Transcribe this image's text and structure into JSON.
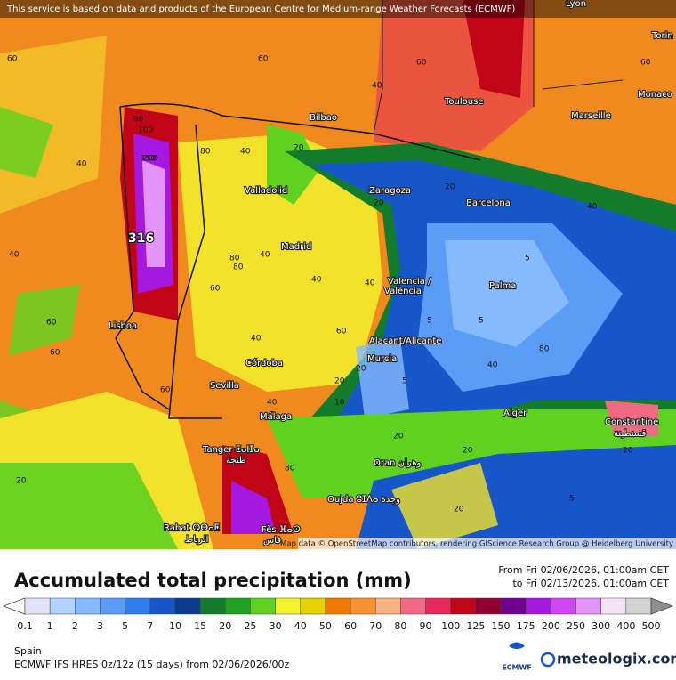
{
  "banner": "This service is based on data and products of the European Centre for Medium-range Weather Forecasts (ECMWF)",
  "attribution": "Map data © OpenStreetMap contributors, rendering GIScience Research Group @ Heidelberg University",
  "map": {
    "cities": [
      "Lyon",
      "Torin",
      "Monaco",
      "Marseille",
      "Toulouse",
      "Bilbao",
      "Valladolid",
      "Zaragoza",
      "Barcelona",
      "Madrid",
      "Valencia /",
      "València",
      "Palma",
      "Lisboa",
      "Alacant/Alicante",
      "Murcia",
      "Córdoba",
      "Sevilla",
      "Alger",
      "Constantine",
      "قسنطينة",
      "Málaga",
      "Tanger ⵟⴰⵏⵊⴰ",
      "طنجة",
      "Oran وهران",
      "Oujda ⵓⵊⴷⴰ وجدة",
      "Rabat ⵕⴱⴰⵟ",
      "الرباط",
      "Fès ⴼⴰⵙ",
      "فاس"
    ],
    "contours": [
      "60",
      "60",
      "40",
      "80",
      "100",
      "150",
      "200",
      "40",
      "60",
      "60",
      "40",
      "80",
      "80",
      "60",
      "40",
      "20",
      "20",
      "20",
      "40",
      "60",
      "20",
      "40",
      "40",
      "5",
      "5",
      "5",
      "20",
      "40",
      "60",
      "80",
      "60",
      "40",
      "20",
      "5",
      "40",
      "60",
      "80",
      "20",
      "40",
      "20",
      "20",
      "10",
      "5",
      "20",
      "80"
    ],
    "max_label": "316"
  },
  "title": "Accumulated total precipitation (mm)",
  "period": [
    "From Fri 02/06/2026, 01:00am CET",
    "to Fri 02/13/2026, 01:00am CET"
  ],
  "legend": {
    "labels": [
      0.1,
      1,
      2,
      3,
      5,
      7,
      10,
      15,
      20,
      25,
      30,
      40,
      50,
      60,
      70,
      80,
      90,
      100,
      125,
      150,
      175,
      200,
      250,
      300,
      400,
      500
    ],
    "colors": [
      "#e2e2f8",
      "#b4d2ff",
      "#86baff",
      "#5a9cf6",
      "#2f7cec",
      "#1656c8",
      "#0c3a8e",
      "#137c2c",
      "#1fa21f",
      "#5fd21f",
      "#f2f22a",
      "#e6d200",
      "#f07a00",
      "#f89232",
      "#f8b27e",
      "#f06a86",
      "#e8285a",
      "#c20418",
      "#920032",
      "#70008e",
      "#a418e0",
      "#d046f0",
      "#e294f8",
      "#f6e2f8",
      "#d2d2d2"
    ]
  },
  "region": "Spain",
  "model": "ECMWF IFS HRES 0z/12z (15 days) from  02/06/2026/00z",
  "logos": [
    "ECMWF",
    "meteologix.com"
  ]
}
